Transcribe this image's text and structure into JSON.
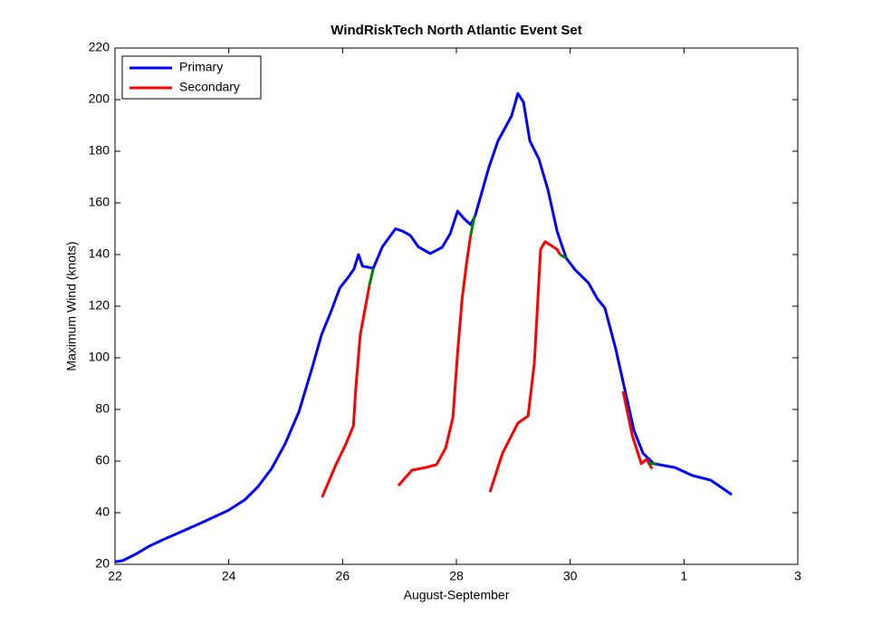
{
  "chart_data": {
    "type": "line",
    "title": "WindRiskTech North Atlantic Event Set",
    "xlabel": "August-September",
    "ylabel": "Maximum Wind (knots)",
    "xlim": [
      22,
      34
    ],
    "xticks": [
      22,
      24,
      26,
      28,
      30,
      {
        "value": 32,
        "label": "1"
      },
      {
        "value": 34,
        "label": "3"
      }
    ],
    "ylim": [
      20,
      220
    ],
    "yticks": [
      20,
      40,
      60,
      80,
      100,
      120,
      140,
      160,
      180,
      200,
      220
    ],
    "legend": "upper left",
    "series": [
      {
        "name": "Primary",
        "color": "#0000ff",
        "x": [
          22,
          22.13,
          22.37,
          22.6,
          22.84,
          23.16,
          23.56,
          24,
          24.28,
          24.51,
          24.75,
          24.99,
          25.23,
          25.47,
          25.63,
          25.79,
          25.95,
          26.11,
          26.2,
          26.28,
          26.35,
          26.47,
          26.54,
          26.7,
          26.93,
          27.06,
          27.19,
          27.33,
          27.54,
          27.75,
          27.89,
          28.02,
          28.13,
          28.25,
          28.33,
          28.57,
          28.73,
          28.97,
          29.08,
          29.18,
          29.29,
          29.45,
          29.61,
          29.77,
          29.93,
          30.09,
          30.32,
          30.48,
          30.61,
          30.8,
          30.96,
          31.12,
          31.28,
          31.47,
          31.84,
          32.15,
          32.47,
          32.84
        ],
        "values": [
          21,
          21.4,
          24,
          27,
          29.5,
          32.6,
          36.5,
          41,
          45,
          50,
          57,
          66.7,
          79,
          96.5,
          109,
          117.5,
          127,
          131.5,
          134.4,
          140,
          135.5,
          135,
          134.7,
          143,
          150,
          149,
          147.4,
          143,
          140.4,
          142.8,
          148,
          156.8,
          154,
          151.6,
          155,
          173.7,
          184,
          193.7,
          202.4,
          199,
          184,
          177,
          165,
          149,
          138.6,
          134,
          129,
          122.8,
          119.3,
          103.5,
          87.7,
          72,
          63,
          59,
          57.5,
          54.4,
          52.6,
          47
        ]
      },
      {
        "name": "Secondary",
        "color": "#ff0000",
        "x": [
          25.64,
          25.87,
          26.06,
          26.19,
          26.23,
          26.31,
          26.47,
          null,
          26.98,
          27.22,
          27.46,
          27.65,
          27.81,
          27.94,
          28.02,
          28.1,
          28.18,
          28.25,
          null,
          28.59,
          28.81,
          29.08,
          29.26,
          29.37,
          29.48,
          29.56,
          29.77,
          29.82,
          null,
          30.93,
          31.09,
          31.25,
          31.34,
          31.44
        ],
        "values": [
          46,
          58,
          66.7,
          73.7,
          87.7,
          108.8,
          128,
          null,
          50.5,
          56.5,
          57.5,
          58.6,
          65,
          77,
          101.8,
          122.8,
          136.8,
          147.4,
          null,
          48,
          63,
          74.7,
          77.5,
          98,
          142,
          145,
          142,
          140,
          null,
          87,
          70,
          59,
          60.7,
          57
        ]
      },
      {
        "color": "#008000",
        "x": [
          26.47,
          26.54,
          null,
          28.25,
          28.32,
          null,
          29.82,
          29.93,
          null,
          31.37,
          31.52
        ],
        "values": [
          128,
          134.7,
          null,
          147.4,
          155,
          null,
          140,
          138.6,
          null,
          59,
          59
        ]
      }
    ]
  }
}
